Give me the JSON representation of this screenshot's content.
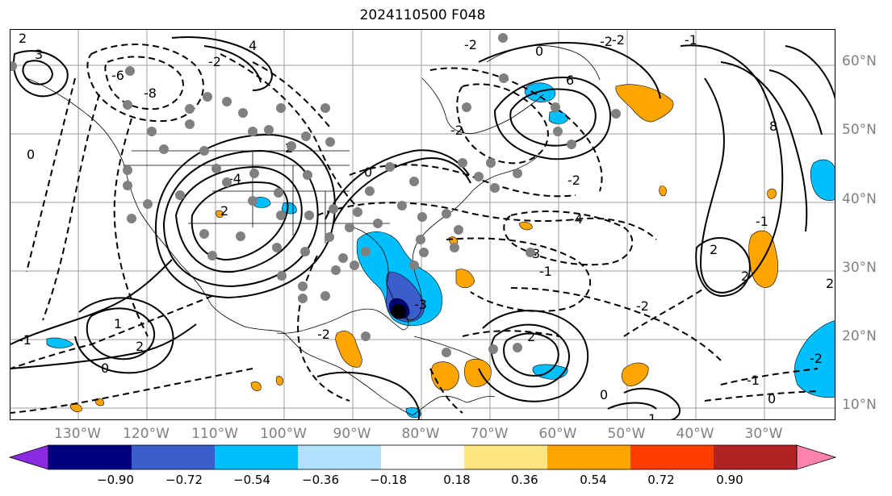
{
  "title": "2024110500 F048",
  "lat_labels": [
    "60°N",
    "50°N",
    "40°N",
    "30°N",
    "20°N",
    "10°N"
  ],
  "lon_labels": [
    "130°W",
    "120°W",
    "110°W",
    "100°W",
    "90°W",
    "80°W",
    "70°W",
    "60°W",
    "50°W",
    "40°W",
    "30°W"
  ],
  "contour_labels": [
    "2",
    "3",
    "4",
    "-2",
    "0",
    "-6",
    "-8",
    "-4",
    "6",
    "-2",
    "0",
    "-2",
    "8",
    "2",
    "-1",
    "-2",
    "-1",
    "2",
    "-1",
    "0",
    "3",
    "-2",
    "-4",
    "-3",
    "-2",
    "-2",
    "-1",
    "0",
    "1",
    "2",
    "0",
    "2",
    "-2",
    "2",
    "2",
    "-2",
    "-1",
    "0",
    "1",
    "2"
  ],
  "colorbar": {
    "ticks": [
      "−0.90",
      "−0.72",
      "−0.54",
      "−0.36",
      "−0.18",
      "0.18",
      "0.36",
      "0.54",
      "0.72",
      "0.90"
    ],
    "colors": [
      "#8a2be2",
      "#000080",
      "#3a5fcd",
      "#00bfff",
      "#b0e2ff",
      "#ffffff",
      "#ffe680",
      "#ffa500",
      "#ff3c00",
      "#b22222",
      "#ff82ab"
    ]
  },
  "colors": {
    "positive_fill": "#ffa500",
    "negative_fill": "#00bfff",
    "strong_negative": "#3a5fcd",
    "station": "#808080",
    "label_gray": "#808080"
  }
}
